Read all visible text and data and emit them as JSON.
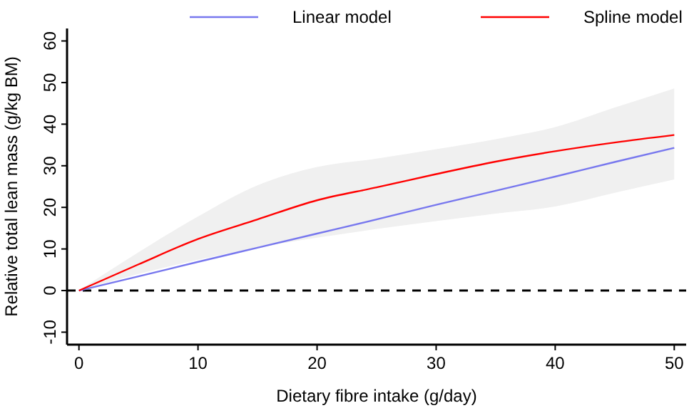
{
  "chart_data": {
    "type": "line",
    "xlabel": "Dietary fibre intake (g/day)",
    "ylabel": "Relative total lean mass (g/kg BM)",
    "x": [
      0,
      5,
      10,
      15,
      20,
      25,
      30,
      35,
      40,
      45,
      50
    ],
    "series": [
      {
        "name": "Linear model",
        "color": "#7777ee",
        "values": [
          0,
          3.4,
          6.9,
          10.3,
          13.7,
          17.1,
          20.6,
          24,
          27.4,
          30.9,
          34.3
        ]
      },
      {
        "name": "Spline model",
        "color": "#ff0000",
        "values": [
          0,
          6.3,
          12.4,
          17.1,
          21.7,
          24.8,
          28,
          31,
          33.5,
          35.6,
          37.4
        ],
        "lower": [
          0,
          4,
          7.4,
          10.3,
          12.7,
          14.8,
          16.7,
          18.5,
          20.2,
          23.5,
          26.7
        ],
        "upper": [
          0,
          9.2,
          17.8,
          25.3,
          29.7,
          31.7,
          34,
          36.4,
          39.3,
          44,
          48.6
        ]
      }
    ],
    "xlim": [
      -1,
      51
    ],
    "ylim": [
      -13,
      63
    ],
    "xticks": [
      0,
      10,
      20,
      30,
      40,
      50
    ],
    "yticks": [
      -10,
      0,
      10,
      20,
      30,
      40,
      50,
      60
    ],
    "ref_lines": [
      {
        "axis": "y",
        "value": 0,
        "line_style": "dashed",
        "color": "#000000"
      }
    ],
    "legend": "top",
    "grid": false
  }
}
